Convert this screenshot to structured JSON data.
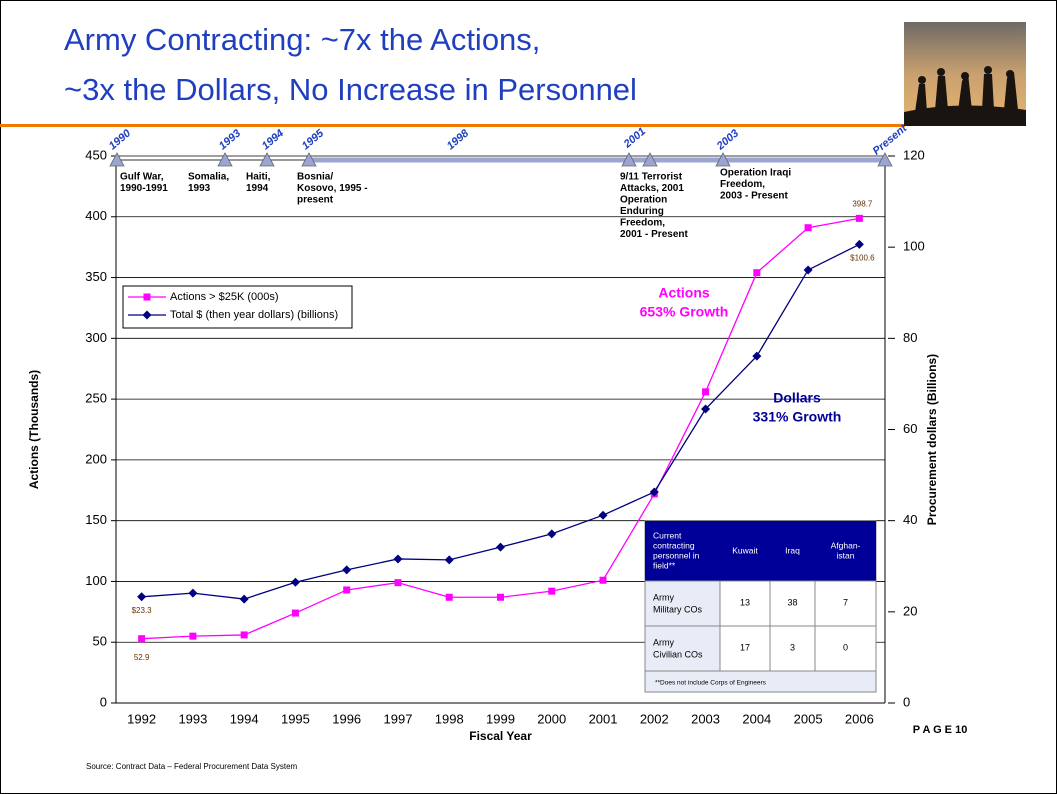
{
  "chart_data": {
    "type": "line",
    "title": [
      "Army Contracting: ~7x the Actions,",
      "~3x the Dollars, No Increase in Personnel"
    ],
    "xlabel": "Fiscal Year",
    "ylabel": "Actions (Thousands)",
    "y2label": "Procurement dollars (Billions)",
    "categories": [
      "1992",
      "1993",
      "1994",
      "1995",
      "1996",
      "1997",
      "1998",
      "1999",
      "2000",
      "2001",
      "2002",
      "2003",
      "2004",
      "2005",
      "2006"
    ],
    "series": [
      {
        "name": "Actions > $25K (000s)",
        "color": "#ff00ff",
        "marker": "square",
        "values": [
          52.9,
          55,
          56,
          74,
          93,
          99,
          87,
          87,
          92,
          101,
          172,
          256,
          354,
          391,
          398.7
        ],
        "value_labels": [
          "52.9",
          null,
          null,
          null,
          null,
          null,
          null,
          null,
          null,
          null,
          null,
          null,
          null,
          null,
          "398.7"
        ]
      },
      {
        "name": "Total $ (then year dollars) (billions)",
        "color": "#000080",
        "marker": "diamond",
        "axis": "y2",
        "values": [
          23.3,
          24.1,
          22.8,
          26.5,
          29.2,
          31.6,
          31.4,
          34.2,
          37.1,
          41.2,
          46.3,
          64.5,
          76.1,
          95,
          100.6
        ],
        "value_labels": [
          "$23.3",
          null,
          null,
          null,
          null,
          null,
          null,
          null,
          null,
          null,
          null,
          null,
          null,
          null,
          "$100.6"
        ]
      }
    ],
    "ylim": [
      0,
      450
    ],
    "yticks": [
      0,
      50,
      100,
      150,
      200,
      250,
      300,
      350,
      400,
      450
    ],
    "y2lim": [
      0,
      120
    ],
    "y2ticks": [
      0,
      20,
      40,
      60,
      80,
      100,
      120
    ],
    "grid": true,
    "annotations": [
      {
        "text": [
          "Actions",
          "653% Growth"
        ],
        "color": "#ff00ff"
      },
      {
        "text": [
          "Dollars",
          "331% Growth"
        ],
        "color": "#000099"
      }
    ],
    "timeline": {
      "years": [
        "1990",
        "1993",
        "1994",
        "1995",
        "1998",
        "2001",
        "2003",
        "Present"
      ],
      "events": [
        [
          "Gulf War,",
          "1990-1991"
        ],
        [
          "Somalia,",
          "1993"
        ],
        [
          "Haiti,",
          "1994"
        ],
        [
          "Bosnia/",
          "Kosovo, 1995 -",
          "present"
        ],
        [
          "9/11 Terrorist",
          "Attacks, 2001",
          "Operation",
          "Enduring",
          "Freedom,",
          "2001 - Present"
        ],
        [
          "Operation Iraqi",
          "Freedom,",
          "2003 - Present"
        ]
      ]
    },
    "table": {
      "header": [
        [
          "Current",
          "contracting",
          "personnel in",
          "field**"
        ],
        [
          "Kuwait"
        ],
        [
          "Iraq"
        ],
        [
          "Afghan-",
          "istan"
        ]
      ],
      "rows": [
        [
          [
            "Army",
            "Military COs"
          ],
          "13",
          "38",
          "7"
        ],
        [
          [
            "Army",
            "Civilian COs"
          ],
          "17",
          "3",
          "0"
        ]
      ],
      "footnote": "**Does not include Corps of Engineers"
    }
  },
  "page": "P A G E 10",
  "source": "Source: Contract Data – Federal Procurement Data System"
}
